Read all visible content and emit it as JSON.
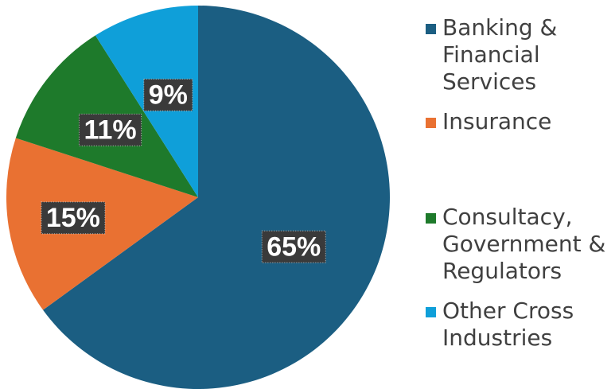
{
  "chart_data": {
    "type": "pie",
    "title": "",
    "start_angle": "12 o'clock",
    "direction": "clockwise",
    "legend_position": "right",
    "slices": [
      {
        "name": "Banking & Financial Services",
        "value": 65,
        "label": "65%",
        "color": "#1b5e82"
      },
      {
        "name": "Insurance",
        "value": 15,
        "label": "15%",
        "color": "#e97132"
      },
      {
        "name": "Consultacy, Government & Regulators",
        "value": 11,
        "label": "11%",
        "color": "#1e7a2b"
      },
      {
        "name": "Other Cross Industries",
        "value": 9,
        "label": "9%",
        "color": "#0f9fd9"
      }
    ]
  },
  "legend": {
    "items": [
      {
        "label": "Banking & Financial Services",
        "color": "#1b5e82"
      },
      {
        "label": "Insurance",
        "color": "#e97132"
      },
      {
        "label": "Consultacy, Government & Regulators",
        "color": "#1e7a2b"
      },
      {
        "label": "Other Cross Industries",
        "color": "#0f9fd9"
      }
    ]
  }
}
